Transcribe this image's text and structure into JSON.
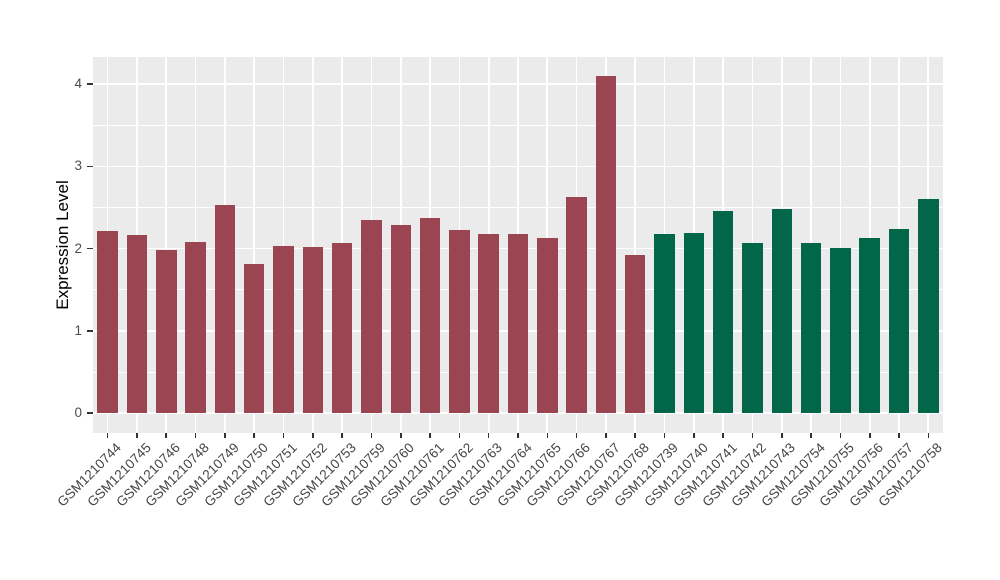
{
  "chart_data": {
    "type": "bar",
    "title": "",
    "xlabel": "",
    "ylabel": "Expression Level",
    "ylim": [
      0,
      4.33
    ],
    "yticks": [
      0,
      1,
      2,
      3,
      4
    ],
    "yticks_minor": [
      0.5,
      1.5,
      2.5,
      3.5
    ],
    "grid": true,
    "legend": false,
    "categories": [
      "GSM1210744",
      "GSM1210745",
      "GSM1210746",
      "GSM1210748",
      "GSM1210749",
      "GSM1210750",
      "GSM1210751",
      "GSM1210752",
      "GSM1210753",
      "GSM1210759",
      "GSM1210760",
      "GSM1210761",
      "GSM1210762",
      "GSM1210763",
      "GSM1210764",
      "GSM1210765",
      "GSM1210766",
      "GSM1210767",
      "GSM1210768",
      "GSM1210739",
      "GSM1210740",
      "GSM1210741",
      "GSM1210742",
      "GSM1210743",
      "GSM1210754",
      "GSM1210755",
      "GSM1210756",
      "GSM1210757",
      "GSM1210758"
    ],
    "values": [
      2.21,
      2.16,
      1.98,
      2.08,
      2.53,
      1.81,
      2.03,
      2.02,
      2.06,
      2.35,
      2.28,
      2.37,
      2.22,
      2.17,
      2.17,
      2.13,
      2.63,
      4.1,
      1.92,
      2.18,
      2.19,
      2.45,
      2.06,
      2.48,
      2.07,
      2.01,
      2.13,
      2.24,
      2.6
    ],
    "bar_colors": [
      "#9B4452",
      "#9B4452",
      "#9B4452",
      "#9B4452",
      "#9B4452",
      "#9B4452",
      "#9B4452",
      "#9B4452",
      "#9B4452",
      "#9B4452",
      "#9B4452",
      "#9B4452",
      "#9B4452",
      "#9B4452",
      "#9B4452",
      "#9B4452",
      "#9B4452",
      "#9B4452",
      "#9B4452",
      "#026649",
      "#026649",
      "#026649",
      "#026649",
      "#026649",
      "#026649",
      "#026649",
      "#026649",
      "#026649",
      "#026649"
    ],
    "palette": {
      "maroon_group": "#9B4452",
      "green_group": "#026649"
    }
  },
  "style_colors": {
    "panel_background": "#EBEBEB",
    "gridline": "#FFFFFF",
    "tick_mark": "#333333",
    "tick_label": "#4D4D4D",
    "axis_title": "#000000",
    "figure_background": "#FFFFFF"
  }
}
